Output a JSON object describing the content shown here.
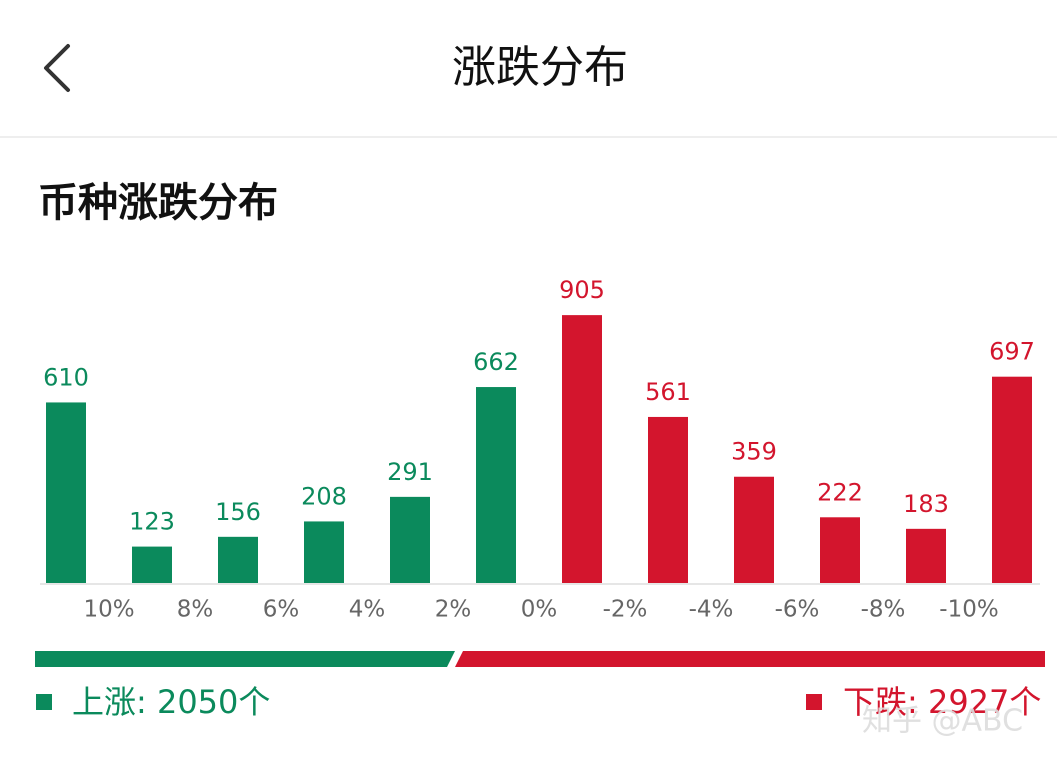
{
  "header": {
    "title": "涨跌分布"
  },
  "chart_data": {
    "type": "bar",
    "title": "币种涨跌分布",
    "boundary_labels": [
      "10%",
      "8%",
      "6%",
      "4%",
      "2%",
      "0%",
      "-2%",
      "-4%",
      "-6%",
      "-8%",
      "-10%"
    ],
    "ylim": [
      0,
      1000
    ],
    "series": [
      {
        "legend_label": "上涨: 2050个",
        "total": 2050,
        "color": "#0b8a5c",
        "values": [
          610,
          123,
          156,
          208,
          291,
          662,
          null,
          null,
          null,
          null,
          null,
          null
        ]
      },
      {
        "legend_label": "下跌: 2927个",
        "total": 2927,
        "color": "#d3152d",
        "values": [
          null,
          null,
          null,
          null,
          null,
          null,
          905,
          561,
          359,
          222,
          183,
          697
        ]
      }
    ]
  },
  "watermark": "知乎 @ABC"
}
